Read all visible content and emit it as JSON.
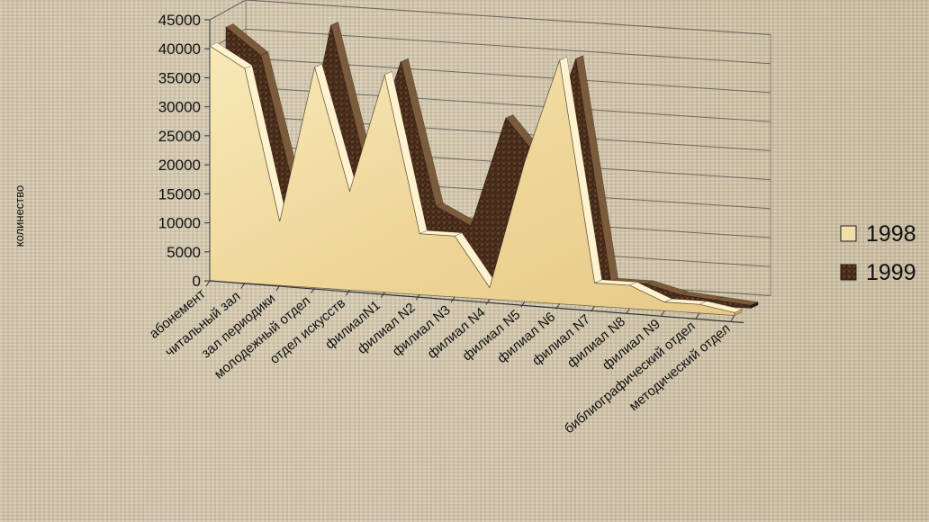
{
  "chart_data": {
    "type": "area",
    "chart_style": "3d-area",
    "title": "",
    "xlabel": "",
    "ylabel": "колинество",
    "ylim": [
      0,
      45000
    ],
    "yticks": [
      0,
      5000,
      10000,
      15000,
      20000,
      25000,
      30000,
      35000,
      40000,
      45000
    ],
    "categories": [
      "абонемент",
      "читальный зал",
      "зал периодики",
      "молодежный отдел",
      "отдел искусств",
      "филиалN1",
      "филиал N2",
      "филиал N3",
      "филиал N4",
      "филиал N5",
      "филиал N6",
      "филиал N7",
      "филиал N8",
      "филиал N9",
      "библиографический отдел",
      "методический отдел"
    ],
    "series": [
      {
        "name": "1998",
        "color": "#f1dba0",
        "values": [
          40500,
          37000,
          11000,
          38000,
          17000,
          37500,
          10500,
          10500,
          2000,
          24000,
          42000,
          4000,
          4000,
          1500,
          1500,
          500
        ]
      },
      {
        "name": "1999",
        "color": "#4f3020",
        "values": [
          42500,
          38000,
          14000,
          44000,
          20000,
          38500,
          14000,
          11000,
          30000,
          23000,
          41000,
          3000,
          3000,
          1500,
          1000,
          500
        ]
      }
    ],
    "grid": true,
    "legend_position": "right"
  }
}
